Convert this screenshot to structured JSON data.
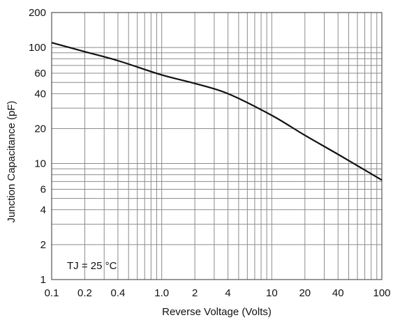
{
  "chart_data": {
    "type": "line",
    "title": "",
    "xlabel": "Reverse Voltage (Volts)",
    "ylabel": "Junction Capacitance (pF)",
    "xscale": "log",
    "yscale": "log",
    "xlim": [
      0.1,
      100
    ],
    "ylim": [
      1,
      200
    ],
    "grid": true,
    "x_ticks": [
      0.1,
      0.2,
      0.4,
      1.0,
      2,
      4,
      10,
      20,
      40,
      100
    ],
    "x_tick_labels": [
      "0.1",
      "0.2",
      "0.4",
      "1.0",
      "2",
      "4",
      "10",
      "20",
      "40",
      "100"
    ],
    "y_ticks": [
      1,
      2,
      4,
      6,
      10,
      20,
      40,
      60,
      100,
      200
    ],
    "y_tick_labels": [
      "1",
      "2",
      "4",
      "6",
      "10",
      "20",
      "40",
      "60",
      "100",
      "200"
    ],
    "annotation": "TJ = 25 °C",
    "series": [
      {
        "color": "#111111",
        "x": [
          0.1,
          0.2,
          0.4,
          1,
          2,
          4,
          10,
          20,
          40,
          100
        ],
        "y": [
          110,
          92,
          77,
          58,
          49,
          40,
          26,
          17.5,
          12,
          7.2
        ]
      }
    ]
  }
}
